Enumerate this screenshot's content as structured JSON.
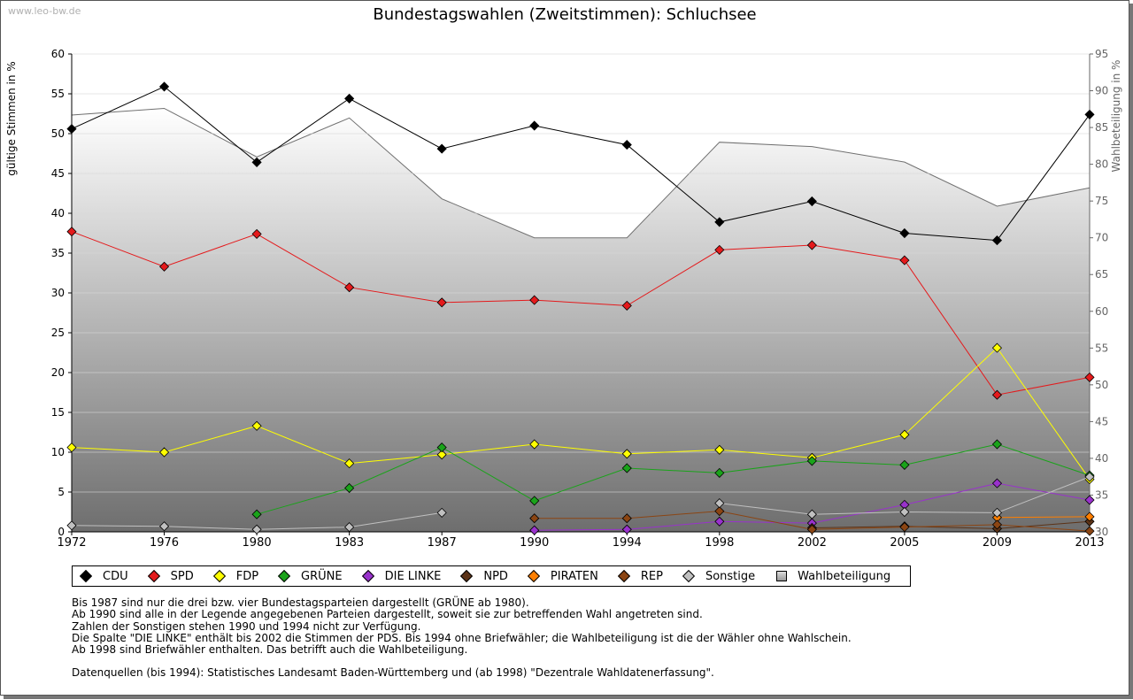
{
  "watermark": "www.leo-bw.de",
  "chart_data": {
    "type": "line",
    "title": "Bundestagswahlen (Zweitstimmen): Schluchsee",
    "ylabel_left": "gültige Stimmen in %",
    "ylabel_right": "Wahlbeteiligung in %",
    "x": [
      "1972",
      "1976",
      "1980",
      "1983",
      "1987",
      "1990",
      "1994",
      "1998",
      "2002",
      "2005",
      "2009",
      "2013"
    ],
    "ylim_left": [
      0,
      60
    ],
    "yticks_left": [
      "0",
      "5",
      "10",
      "15",
      "20",
      "25",
      "30",
      "35",
      "40",
      "45",
      "50",
      "55",
      "60"
    ],
    "ylim_right": [
      30,
      95
    ],
    "yticks_right": [
      "30",
      "35",
      "40",
      "45",
      "50",
      "55",
      "60",
      "65",
      "70",
      "75",
      "80",
      "85",
      "90",
      "95"
    ],
    "grid": true,
    "turnout": {
      "name": "Wahlbeteiligung",
      "values": [
        86.7,
        87.6,
        81.0,
        86.3,
        75.3,
        70.0,
        70.0,
        83.0,
        82.4,
        80.3,
        74.3,
        76.8
      ]
    },
    "series": [
      {
        "name": "CDU",
        "color": "#000000",
        "values": [
          50.6,
          55.9,
          46.4,
          54.4,
          48.1,
          51.0,
          48.6,
          38.9,
          41.5,
          37.5,
          36.6,
          52.4
        ]
      },
      {
        "name": "SPD",
        "color": "#e41a1c",
        "values": [
          37.7,
          33.3,
          37.4,
          30.7,
          28.8,
          29.1,
          28.4,
          35.4,
          36.0,
          34.1,
          17.2,
          19.4
        ]
      },
      {
        "name": "FDP",
        "color": "#ffff00",
        "values": [
          10.6,
          10.0,
          13.3,
          8.6,
          9.7,
          11.0,
          9.8,
          10.3,
          9.3,
          12.2,
          23.1,
          6.6
        ]
      },
      {
        "name": "GRÜNE",
        "color": "#1aa31a",
        "values": [
          null,
          null,
          2.2,
          5.5,
          10.6,
          3.9,
          8.0,
          7.4,
          8.9,
          8.4,
          11.0,
          7.1
        ]
      },
      {
        "name": "DIE LINKE",
        "color": "#9932cc",
        "values": [
          null,
          null,
          null,
          null,
          null,
          0.2,
          0.3,
          1.3,
          1.1,
          3.4,
          6.1,
          4.0
        ]
      },
      {
        "name": "NPD",
        "color": "#5c3317",
        "values": [
          null,
          null,
          null,
          null,
          null,
          null,
          null,
          null,
          0.5,
          0.7,
          0.4,
          1.3
        ]
      },
      {
        "name": "PIRATEN",
        "color": "#ff7f00",
        "values": [
          null,
          null,
          null,
          null,
          null,
          null,
          null,
          null,
          null,
          null,
          1.8,
          1.9
        ]
      },
      {
        "name": "REP",
        "color": "#8b4513",
        "values": [
          null,
          null,
          null,
          null,
          null,
          1.7,
          1.7,
          2.6,
          0.3,
          0.6,
          0.9,
          0.1
        ]
      },
      {
        "name": "Sonstige",
        "color": "#c0c0c0",
        "values": [
          0.8,
          0.7,
          0.3,
          0.6,
          2.4,
          null,
          null,
          3.6,
          2.2,
          2.5,
          2.4,
          6.9
        ]
      }
    ]
  },
  "legend": [
    {
      "label": "CDU",
      "color": "#000000"
    },
    {
      "label": "SPD",
      "color": "#e41a1c"
    },
    {
      "label": "FDP",
      "color": "#ffff00"
    },
    {
      "label": "GRÜNE",
      "color": "#1aa31a"
    },
    {
      "label": "DIE LINKE",
      "color": "#9932cc"
    },
    {
      "label": "NPD",
      "color": "#5c3317"
    },
    {
      "label": "PIRATEN",
      "color": "#ff7f00"
    },
    {
      "label": "REP",
      "color": "#8b4513"
    },
    {
      "label": "Sonstige",
      "color": "#c0c0c0"
    },
    {
      "label": "Wahlbeteiligung",
      "color": "#bbbbbb"
    }
  ],
  "notes": [
    "Bis 1987 sind nur die drei bzw. vier Bundestagsparteien dargestellt (GRÜNE ab 1980).",
    "Ab 1990 sind alle in der Legende angegebenen Parteien dargestellt, soweit sie zur betreffenden Wahl angetreten sind.",
    "Zahlen der Sonstigen stehen 1990 und 1994 nicht zur Verfügung.",
    "Die Spalte \"DIE LINKE\" enthält bis 2002 die Stimmen der PDS. Bis 1994 ohne Briefwähler; die Wahlbeteiligung ist die der Wähler ohne Wahlschein.",
    "Ab 1998 sind Briefwähler enthalten. Das betrifft auch die Wahlbeteiligung."
  ],
  "source": "Datenquellen (bis 1994): Statistisches Landesamt Baden-Württemberg und (ab 1998) \"Dezentrale Wahldatenerfassung\"."
}
